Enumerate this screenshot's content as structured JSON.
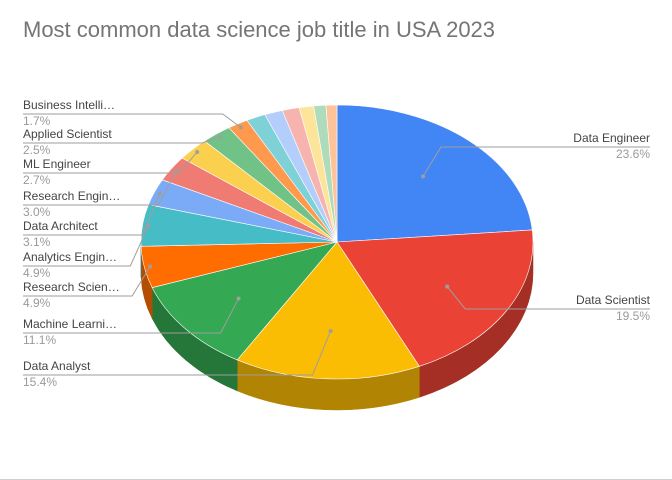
{
  "chart_data": {
    "type": "pie",
    "title": "Most common data science job title in USA 2023",
    "slices": [
      {
        "label": "Data Engineer",
        "percent_label": "23.6%",
        "value": 23.6,
        "color": "#4285f4",
        "side_color": "#2f5fae"
      },
      {
        "label": "Data Scientist",
        "percent_label": "19.5%",
        "value": 19.5,
        "color": "#ea4335",
        "side_color": "#a52f25"
      },
      {
        "label": "Data Analyst",
        "percent_label": "15.4%",
        "value": 15.4,
        "color": "#fbbc04",
        "side_color": "#b18503"
      },
      {
        "label": "Machine Learni…",
        "percent_label": "11.1%",
        "value": 11.1,
        "color": "#34a853",
        "side_color": "#247639"
      },
      {
        "label": "Research Scien…",
        "percent_label": "4.9%",
        "value": 4.9,
        "color": "#ff6d01",
        "side_color": "#b44d01"
      },
      {
        "label": "Analytics Engin…",
        "percent_label": "4.9%",
        "value": 4.9,
        "color": "#46bdc6",
        "side_color": "#31858b"
      },
      {
        "label": "Data Architect",
        "percent_label": "3.1%",
        "value": 3.1,
        "color": "#7baaf7",
        "side_color": "#5778ae"
      },
      {
        "label": "Research Engin…",
        "percent_label": "3.0%",
        "value": 3.0,
        "color": "#f07b72",
        "side_color": "#a95750"
      },
      {
        "label": "ML Engineer",
        "percent_label": "2.7%",
        "value": 2.7,
        "color": "#fcd04f",
        "side_color": "#b29338"
      },
      {
        "label": "Applied Scientist",
        "percent_label": "2.5%",
        "value": 2.5,
        "color": "#71c287",
        "side_color": "#50895f"
      },
      {
        "label": "Business Intelli…",
        "percent_label": "1.7%",
        "value": 1.7,
        "color": "#ff994d",
        "side_color": "#b46c36"
      },
      {
        "value": 1.6,
        "color": "#7ed1d7",
        "side_color": "#599398"
      },
      {
        "value": 1.5,
        "color": "#b3cefb",
        "side_color": "#7e91b1"
      },
      {
        "value": 1.4,
        "color": "#f7b4ae",
        "side_color": "#ae7f7b"
      },
      {
        "value": 1.2,
        "color": "#fde49b",
        "side_color": "#b2a16d"
      },
      {
        "value": 1.0,
        "color": "#aedcba",
        "side_color": "#7b9b83"
      },
      {
        "value": 0.9,
        "color": "#ffc399",
        "side_color": "#b48a6c"
      }
    ]
  }
}
